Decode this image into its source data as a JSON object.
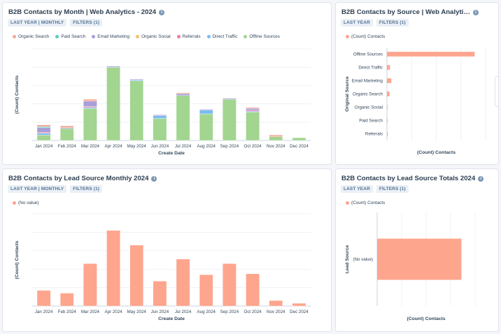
{
  "colors": {
    "organic_search": "#f5a895",
    "paid_search": "#5bcac0",
    "email_marketing": "#a89fd8",
    "organic_social": "#f5c16a",
    "referrals": "#f07aa0",
    "direct_traffic": "#78bdf0",
    "offline_sources": "#a2d590",
    "lead_source": "#fea58e"
  },
  "cards": {
    "c1": {
      "title": "B2B Contacts by Month | Web Analytics - 2024",
      "pill1": "LAST YEAR | MONTHLY",
      "pill2": "FILTERS (1)",
      "legend": [
        "Organic Search",
        "Paid Search",
        "Email Marketing",
        "Organic Social",
        "Referrals",
        "Direct Traffic",
        "Offline Sources"
      ]
    },
    "c2": {
      "title": "B2B Contacts by Source | Web Analyti…",
      "pill1": "LAST YEAR",
      "pill2": "FILTERS (1)",
      "legend": [
        "(Count) Contacts"
      ]
    },
    "c3": {
      "title": "B2B Contacts by Lead Source Monthly 2024",
      "pill1": "LAST YEAR | MONTHLY",
      "pill2": "FILTERS (1)",
      "legend": [
        "(No value)"
      ]
    },
    "c4": {
      "title": "B2B Contacts by Lead Source Totals 2024",
      "pill1": "LAST YEAR",
      "pill2": "FILTERS (1)",
      "legend": [
        "(Count) Contacts"
      ]
    }
  },
  "chart_data": [
    {
      "id": "c1",
      "type": "bar",
      "stacked": true,
      "title": "B2B Contacts by Month | Web Analytics - 2024",
      "xlabel": "Create Date",
      "ylabel": "(Count) Contacts",
      "ylim": [
        0,
        100
      ],
      "categories": [
        "Jan 2024",
        "Feb 2024",
        "Mar 2024",
        "Apr 2024",
        "May 2024",
        "Jun 2024",
        "Jul 2024",
        "Aug 2024",
        "Sep 2024",
        "Oct 2024",
        "Nov 2024",
        "Dec 2024"
      ],
      "series": [
        {
          "name": "Offline Sources",
          "key": "offline_sources",
          "values": [
            6,
            13,
            35,
            80,
            65,
            24,
            49,
            29,
            45,
            31,
            4,
            3
          ]
        },
        {
          "name": "Direct Traffic",
          "key": "direct_traffic",
          "values": [
            2,
            0,
            1,
            0,
            1,
            3,
            0,
            4,
            0,
            1,
            0,
            0
          ]
        },
        {
          "name": "Referrals",
          "key": "referrals",
          "values": [
            1,
            0,
            1,
            0,
            0,
            0,
            0,
            0,
            0,
            1,
            0,
            0
          ]
        },
        {
          "name": "Organic Social",
          "key": "organic_social",
          "values": [
            0,
            0,
            0,
            0,
            0,
            0,
            0,
            0,
            0,
            0,
            0,
            0
          ]
        },
        {
          "name": "Email Marketing",
          "key": "email_marketing",
          "values": [
            5,
            1,
            6,
            1,
            1,
            1,
            2,
            1,
            1,
            2,
            0,
            0
          ]
        },
        {
          "name": "Paid Search",
          "key": "paid_search",
          "values": [
            1,
            0,
            0,
            0,
            0,
            0,
            0,
            0,
            0,
            0,
            0,
            0
          ]
        },
        {
          "name": "Organic Search",
          "key": "organic_search",
          "values": [
            2,
            2,
            2,
            0,
            0,
            0,
            1,
            0,
            0,
            1,
            2,
            0
          ]
        }
      ]
    },
    {
      "id": "c2",
      "type": "bar",
      "orientation": "horizontal",
      "title": "B2B Contacts by Source | Web Analytics",
      "xlabel": "(Count) Contacts",
      "ylabel": "Original Source",
      "xlim": [
        0,
        450
      ],
      "categories": [
        "Offline Sources",
        "Direct Traffic",
        "Email Marketing",
        "Organic Search",
        "Organic Social",
        "Paid Search",
        "Referrals"
      ],
      "values": [
        400,
        14,
        20,
        12,
        1,
        1,
        3
      ]
    },
    {
      "id": "c3",
      "type": "bar",
      "title": "B2B Contacts by Lead Source Monthly 2024",
      "xlabel": "Create Date",
      "ylabel": "(Count) Contacts",
      "ylim": [
        0,
        100
      ],
      "categories": [
        "Jan 2024",
        "Feb 2024",
        "Mar 2024",
        "Apr 2024",
        "May 2024",
        "Jun 2024",
        "Jul 2024",
        "Aug 2024",
        "Sep 2024",
        "Oct 2024",
        "Nov 2024",
        "Dec 2024"
      ],
      "series": [
        {
          "name": "(No value)",
          "values": [
            17,
            14,
            46,
            82,
            66,
            27,
            51,
            34,
            46,
            35,
            6,
            3
          ]
        }
      ]
    },
    {
      "id": "c4",
      "type": "bar",
      "orientation": "horizontal",
      "title": "B2B Contacts by Lead Source Totals 2024",
      "xlabel": "(Count) Contacts",
      "ylabel": "Lead Source",
      "xlim": [
        0,
        500
      ],
      "categories": [
        "(No value)"
      ],
      "values": [
        430
      ]
    }
  ]
}
